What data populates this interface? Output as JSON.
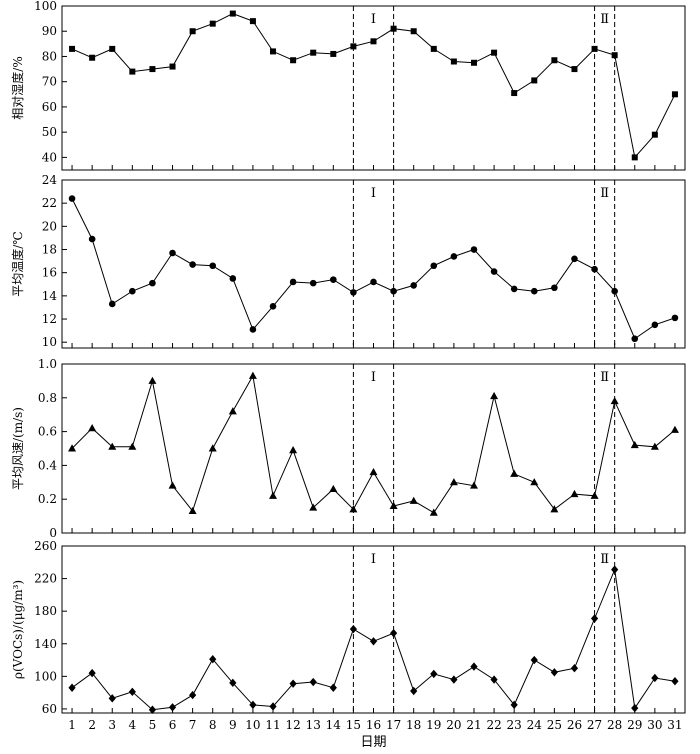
{
  "chart_data": [
    {
      "type": "line",
      "ylabel": "相对湿度/%",
      "ylim": [
        35,
        100
      ],
      "yticks": [
        40,
        50,
        60,
        70,
        80,
        90,
        100
      ],
      "marker": "square",
      "x": [
        1,
        2,
        3,
        4,
        5,
        6,
        7,
        8,
        9,
        10,
        11,
        12,
        13,
        14,
        15,
        16,
        17,
        18,
        19,
        20,
        21,
        22,
        23,
        24,
        25,
        26,
        27,
        28,
        29,
        30,
        31
      ],
      "values": [
        83,
        79.5,
        83,
        74,
        75,
        76,
        90,
        93,
        97,
        94,
        82,
        78.5,
        81.5,
        81,
        84,
        86,
        91,
        90,
        83,
        78,
        77.5,
        81.5,
        65.5,
        70.5,
        78.5,
        75,
        83,
        80.5,
        40,
        49,
        65
      ],
      "period_labels": [
        "Ⅰ",
        "Ⅱ"
      ]
    },
    {
      "type": "line",
      "ylabel": "平均温度/℃",
      "ylim": [
        9.5,
        24
      ],
      "yticks": [
        10,
        12,
        14,
        16,
        18,
        20,
        22,
        24
      ],
      "marker": "circle",
      "x": [
        1,
        2,
        3,
        4,
        5,
        6,
        7,
        8,
        9,
        10,
        11,
        12,
        13,
        14,
        15,
        16,
        17,
        18,
        19,
        20,
        21,
        22,
        23,
        24,
        25,
        26,
        27,
        28,
        29,
        30,
        31
      ],
      "values": [
        22.4,
        18.9,
        13.3,
        14.4,
        15.1,
        17.7,
        16.7,
        16.6,
        15.5,
        11.1,
        13.1,
        15.2,
        15.1,
        15.4,
        14.3,
        15.2,
        14.4,
        14.9,
        16.6,
        17.4,
        18,
        16.1,
        14.6,
        14.4,
        14.7,
        17.2,
        16.3,
        14.4,
        10.3,
        11.5,
        12.1
      ],
      "period_labels": [
        "Ⅰ",
        "Ⅱ"
      ]
    },
    {
      "type": "line",
      "ylabel": "平均风速/(m/s)",
      "ylim": [
        0,
        1.0
      ],
      "yticks": [
        0,
        0.2,
        0.4,
        0.6,
        0.8,
        1.0
      ],
      "ytick_labels": [
        "0",
        "0.2",
        "0.4",
        "0.6",
        "0.8",
        "1.0"
      ],
      "marker": "triangle",
      "x": [
        1,
        2,
        3,
        4,
        5,
        6,
        7,
        8,
        9,
        10,
        11,
        12,
        13,
        14,
        15,
        16,
        17,
        18,
        19,
        20,
        21,
        22,
        23,
        24,
        25,
        26,
        27,
        28,
        29,
        30,
        31
      ],
      "values": [
        0.5,
        0.62,
        0.51,
        0.51,
        0.9,
        0.28,
        0.13,
        0.5,
        0.72,
        0.93,
        0.22,
        0.49,
        0.15,
        0.26,
        0.14,
        0.36,
        0.16,
        0.19,
        0.12,
        0.3,
        0.28,
        0.81,
        0.35,
        0.3,
        0.14,
        0.23,
        0.22,
        0.78,
        0.52,
        0.51,
        0.61
      ],
      "period_labels": [
        "Ⅰ",
        "Ⅱ"
      ]
    },
    {
      "type": "line",
      "ylabel": "ρ(VOCs)/(μg/m³)",
      "xlabel": "日期",
      "ylim": [
        55,
        260
      ],
      "yticks": [
        60,
        100,
        140,
        180,
        220,
        260
      ],
      "marker": "diamond",
      "x": [
        1,
        2,
        3,
        4,
        5,
        6,
        7,
        8,
        9,
        10,
        11,
        12,
        13,
        14,
        15,
        16,
        17,
        18,
        19,
        20,
        21,
        22,
        23,
        24,
        25,
        26,
        27,
        28,
        29,
        30,
        31
      ],
      "xtick_labels": [
        "1",
        "2",
        "3",
        "4",
        "5",
        "6",
        "7",
        "8",
        "9",
        "10",
        "11",
        "12",
        "13",
        "14",
        "15",
        "16",
        "17",
        "18",
        "19",
        "20",
        "21",
        "22",
        "23",
        "24",
        "25",
        "26",
        "27",
        "28",
        "29",
        "30",
        "31"
      ],
      "values": [
        86,
        104,
        73,
        81,
        59,
        62,
        77,
        121,
        92,
        65,
        63,
        91,
        93,
        86,
        158,
        143,
        153,
        82,
        103,
        96,
        112,
        96,
        65,
        120,
        105,
        110,
        171,
        231,
        61,
        98,
        94
      ],
      "period_labels": [
        "Ⅰ",
        "Ⅱ"
      ]
    }
  ],
  "periods": [
    {
      "label": "Ⅰ",
      "start": 15,
      "end": 17
    },
    {
      "label": "Ⅱ",
      "start": 27,
      "end": 28
    }
  ],
  "style": {
    "line_color": "#000000",
    "axis_color": "#000000"
  }
}
